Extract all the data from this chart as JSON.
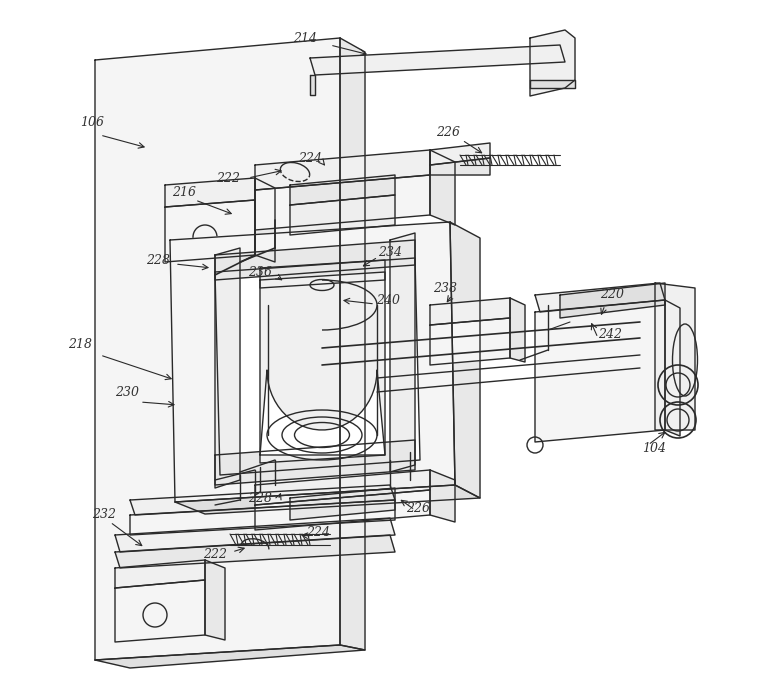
{
  "bg_color": "#ffffff",
  "line_color": "#2a2a2a",
  "label_color": "#333333",
  "figsize": [
    7.67,
    6.86
  ],
  "dpi": 100
}
